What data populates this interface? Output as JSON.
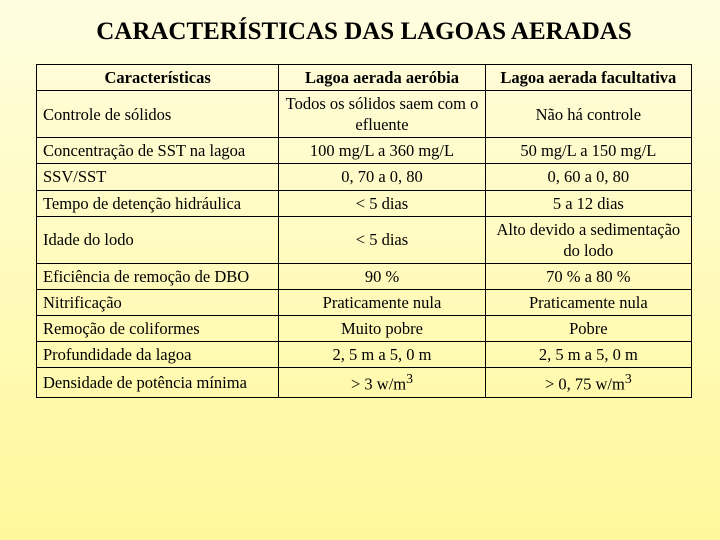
{
  "title": "CARACTERÍSTICAS DAS LAGOAS AERADAS",
  "headers": {
    "h1": "Características",
    "h2": "Lagoa aerada aeróbia",
    "h3": "Lagoa aerada facultativa"
  },
  "rows": [
    {
      "label": "Controle de sólidos",
      "c2": "Todos os sólidos saem com o efluente",
      "c3": "Não há controle"
    },
    {
      "label": "Concentração de SST na lagoa",
      "c2": "100 mg/L a 360 mg/L",
      "c3": "50 mg/L a 150 mg/L"
    },
    {
      "label": "SSV/SST",
      "c2": "0, 70 a 0, 80",
      "c3": "0, 60 a 0, 80"
    },
    {
      "label": "Tempo de detenção hidráulica",
      "c2": "< 5 dias",
      "c3": "5 a 12 dias"
    },
    {
      "label": "Idade do lodo",
      "c2": "< 5 dias",
      "c3": "Alto devido a sedimentação do lodo"
    },
    {
      "label": "Eficiência de remoção de DBO",
      "c2": "90 %",
      "c3": "70 % a 80 %"
    },
    {
      "label": "Nitrificação",
      "c2": "Praticamente nula",
      "c3": "Praticamente nula"
    },
    {
      "label": "Remoção de coliformes",
      "c2": "Muito pobre",
      "c3": "Pobre"
    },
    {
      "label": "Profundidade da lagoa",
      "c2": "2, 5 m a 5, 0 m",
      "c3": "2, 5 m a 5, 0 m"
    },
    {
      "label": "Densidade de potência mínima",
      "c2": "> 3 w/m3",
      "c3": "> 0, 75 w/m3",
      "sup": true
    }
  ]
}
